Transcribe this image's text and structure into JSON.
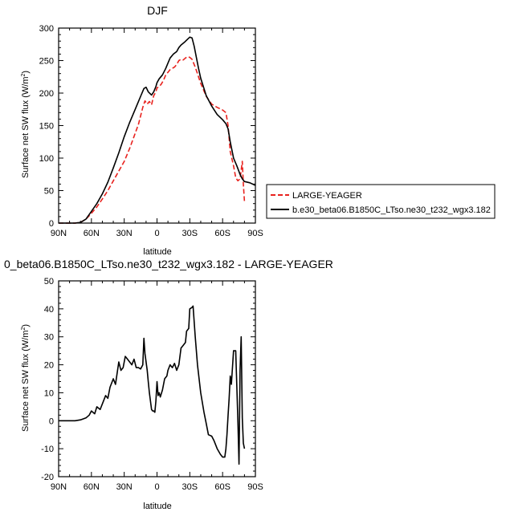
{
  "chart_data": [
    {
      "type": "line",
      "title": "DJF",
      "xlabel": "latitude",
      "ylabel_main": "Surface net SW flux (W/m",
      "ylabel_sup": "2",
      "ylabel_close": ")",
      "xlim": [
        -90,
        90
      ],
      "ylim": [
        0,
        300
      ],
      "xticks": [
        -90,
        -60,
        -30,
        0,
        30,
        60,
        90
      ],
      "xtick_labels": [
        "90N",
        "60N",
        "30N",
        "0",
        "30S",
        "60S",
        "90S"
      ],
      "yticks": [
        0,
        50,
        100,
        150,
        200,
        250,
        300
      ],
      "legend_position": "right",
      "series": [
        {
          "name": "LARGE-YEAGER",
          "color": "#e8221e",
          "dash": "dashed",
          "x": [
            -90,
            -80,
            -75,
            -70,
            -65,
            -60,
            -55,
            -50,
            -45,
            -40,
            -35,
            -30,
            -25,
            -20,
            -17,
            -15,
            -13,
            -11,
            -9,
            -7,
            -5,
            -3,
            -1,
            0,
            2,
            4,
            6,
            8,
            10,
            12,
            14,
            16,
            18,
            20,
            22,
            24,
            26,
            28,
            30,
            32,
            35,
            40,
            45,
            50,
            55,
            60,
            63,
            65,
            67,
            70,
            72,
            74,
            76,
            78,
            79,
            80
          ],
          "y": [
            0,
            0,
            0,
            1,
            6,
            15,
            25,
            37,
            50,
            65,
            80,
            95,
            115,
            138,
            152,
            165,
            178,
            188,
            183,
            187,
            182,
            196,
            202,
            208,
            210,
            214,
            220,
            228,
            232,
            236,
            238,
            240,
            244,
            250,
            252,
            251,
            254,
            256,
            255,
            252,
            240,
            215,
            195,
            183,
            178,
            174,
            170,
            150,
            110,
            88,
            70,
            65,
            68,
            95,
            60,
            33
          ]
        },
        {
          "name": "b.e30_beta06.B1850C_LTso.ne30_t232_wgx3.182",
          "color": "#000000",
          "dash": "solid",
          "x": [
            -90,
            -80,
            -75,
            -70,
            -65,
            -60,
            -55,
            -50,
            -45,
            -40,
            -35,
            -30,
            -25,
            -20,
            -15,
            -12,
            -10,
            -8,
            -5,
            -3,
            -1,
            0,
            2,
            5,
            8,
            10,
            12,
            15,
            18,
            20,
            22,
            25,
            28,
            30,
            32,
            34,
            36,
            38,
            40,
            45,
            50,
            55,
            60,
            63,
            65,
            67,
            70,
            73,
            76,
            78,
            80,
            85,
            90
          ],
          "y": [
            0,
            0,
            0,
            1,
            6,
            18,
            30,
            45,
            63,
            85,
            108,
            133,
            155,
            175,
            195,
            207,
            209,
            202,
            197,
            202,
            210,
            216,
            222,
            228,
            238,
            246,
            254,
            260,
            264,
            270,
            274,
            278,
            283,
            286,
            285,
            272,
            255,
            238,
            223,
            196,
            180,
            167,
            159,
            153,
            145,
            125,
            100,
            88,
            75,
            68,
            64,
            62,
            58
          ]
        }
      ]
    },
    {
      "type": "line",
      "title": "0_beta06.B1850C_LTso.ne30_t232_wgx3.182 - LARGE-YEAGER",
      "xlabel": "latitude",
      "ylabel_main": "Surface net SW flux (W/m",
      "ylabel_sup": "2",
      "ylabel_close": ")",
      "xlim": [
        -90,
        90
      ],
      "ylim": [
        -20,
        50
      ],
      "xticks": [
        -90,
        -60,
        -30,
        0,
        30,
        60,
        90
      ],
      "xtick_labels": [
        "90N",
        "60N",
        "30N",
        "0",
        "30S",
        "60S",
        "90S"
      ],
      "yticks": [
        -20,
        -10,
        0,
        10,
        20,
        30,
        40,
        50
      ],
      "series": [
        {
          "color": "#000000",
          "dash": "solid",
          "x": [
            -90,
            -80,
            -75,
            -70,
            -65,
            -62,
            -60,
            -57,
            -55,
            -52,
            -50,
            -47,
            -45,
            -43,
            -40,
            -38,
            -35,
            -33,
            -31,
            -29,
            -27,
            -25,
            -23,
            -21,
            -19,
            -17,
            -15,
            -13,
            -12,
            -11,
            -10,
            -9,
            -8,
            -7,
            -5,
            -4,
            -3,
            -2,
            -1,
            0,
            1,
            2,
            3,
            5,
            7,
            9,
            10,
            12,
            14,
            16,
            18,
            20,
            22,
            24,
            26,
            27,
            29,
            30,
            32,
            33,
            35,
            37,
            40,
            43,
            45,
            47,
            50,
            52,
            55,
            58,
            60,
            62,
            63,
            64,
            65,
            66,
            67,
            68,
            70,
            72,
            74,
            75,
            76,
            77,
            78,
            79,
            80
          ],
          "y": [
            0,
            0,
            0,
            0.3,
            1,
            2,
            3.5,
            2.5,
            5,
            4,
            6,
            9,
            8,
            12,
            15,
            13,
            21,
            18,
            19,
            23,
            22,
            21,
            20,
            22,
            19,
            19,
            18.5,
            20,
            29.5,
            24,
            21,
            18,
            14,
            10,
            4,
            3.5,
            3.5,
            3,
            7,
            14,
            9,
            10,
            8.5,
            11,
            15,
            16,
            18,
            20,
            19,
            20.5,
            18,
            20,
            26,
            27,
            28,
            32,
            33,
            40,
            40.5,
            41,
            30,
            20,
            10,
            3,
            -1,
            -5,
            -5.5,
            -7,
            -10,
            -12,
            -13,
            -13,
            -10,
            -5,
            2,
            8,
            16,
            13,
            25,
            25,
            0,
            -15.5,
            18,
            30,
            1,
            -8,
            -10
          ]
        }
      ]
    }
  ]
}
